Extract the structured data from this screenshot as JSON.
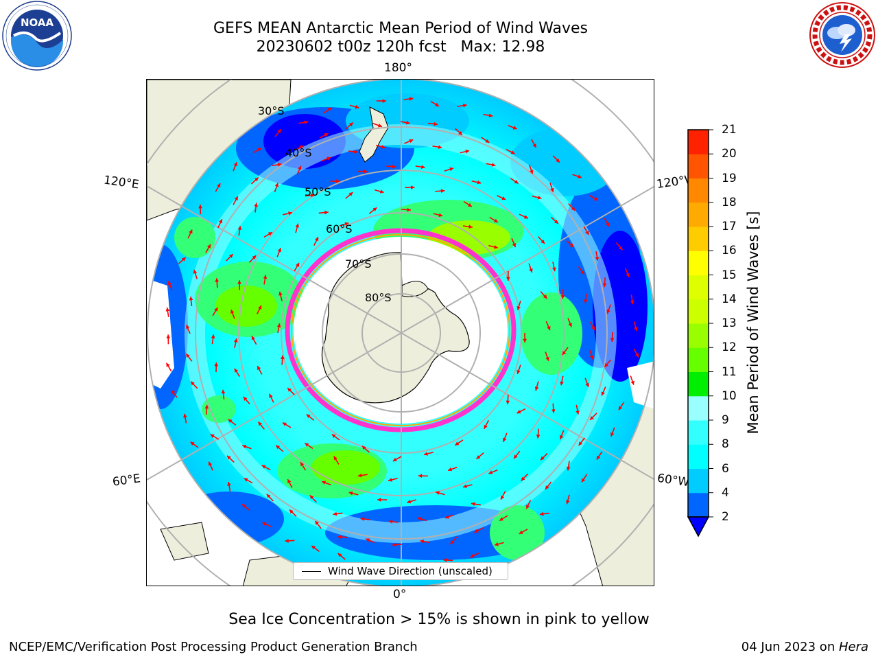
{
  "header": {
    "title_line1": "GEFS MEAN Antarctic Mean Period of Wind Waves",
    "title_line2": "20230602 t00z 120h fcst   Max: 12.98"
  },
  "map": {
    "projection": "south-polar-stereographic",
    "longitude_labels": {
      "top": "180°",
      "bottom": "0°",
      "upper_left": "120°E",
      "upper_right": "120°W",
      "lower_left": "60°E",
      "lower_right": "60°W"
    },
    "latitude_labels": [
      "30°S",
      "40°S",
      "50°S",
      "60°S",
      "70°S",
      "80°S"
    ],
    "land_color": "#eeeedc",
    "ice_edge_colors": [
      "#ff33cc",
      "#ffaa00",
      "#ffff44"
    ],
    "vector_color": "#ff0000",
    "legend_label": "Wind Wave Direction (unscaled)"
  },
  "colorbar": {
    "label": "Mean Period of Wind Waves [s]",
    "ticks": [
      "2",
      "4",
      "6",
      "8",
      "9",
      "10",
      "11",
      "12",
      "13",
      "14",
      "15",
      "16",
      "17",
      "18",
      "19",
      "20",
      "21"
    ],
    "colors": [
      "#0066ff",
      "#00ccff",
      "#00ffff",
      "#33ffff",
      "#99ffff",
      "#33ff77",
      "#00ee00",
      "#66ff00",
      "#99ff00",
      "#ccff00",
      "#ddff00",
      "#ffff00",
      "#ffcc00",
      "#ffaa00",
      "#ff8800",
      "#ff5500",
      "#ff2200",
      "#ff0000"
    ],
    "extend_color": "#0000ff",
    "extend": "min"
  },
  "sea_ice_note": "Sea Ice Concentration > 15% is shown in pink to yellow",
  "footer": {
    "left": "NCEP/EMC/Verification Post Processing Product Generation Branch",
    "date": "04 Jun 2023 on ",
    "host": "Hera"
  }
}
